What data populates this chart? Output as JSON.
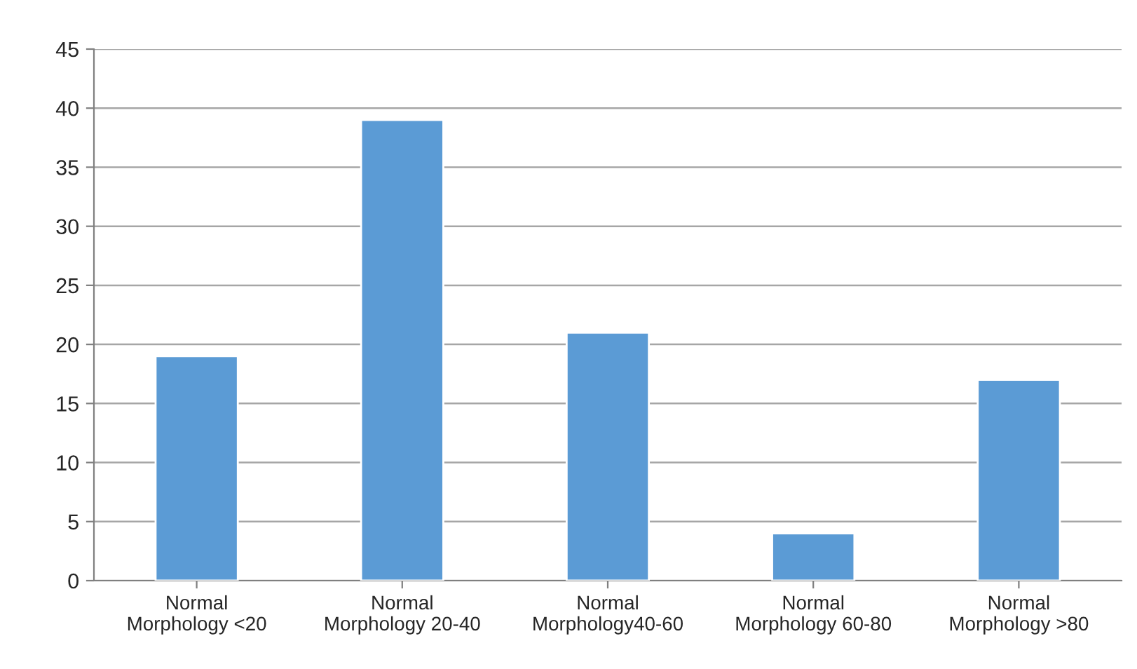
{
  "chart_data": {
    "type": "bar",
    "categories": [
      "Normal\nMorphology <20",
      "Normal\nMorphology 20-40",
      "Normal\nMorphology40-60",
      "Normal\nMorphology 60-80",
      "Normal\nMorphology >80"
    ],
    "values": [
      19,
      39,
      21,
      4,
      17
    ],
    "color": "#5b9bd5",
    "ylim": [
      0,
      45
    ],
    "yticks": [
      0,
      5,
      10,
      15,
      20,
      25,
      30,
      35,
      40,
      45
    ],
    "grid": "y",
    "legend": false
  }
}
